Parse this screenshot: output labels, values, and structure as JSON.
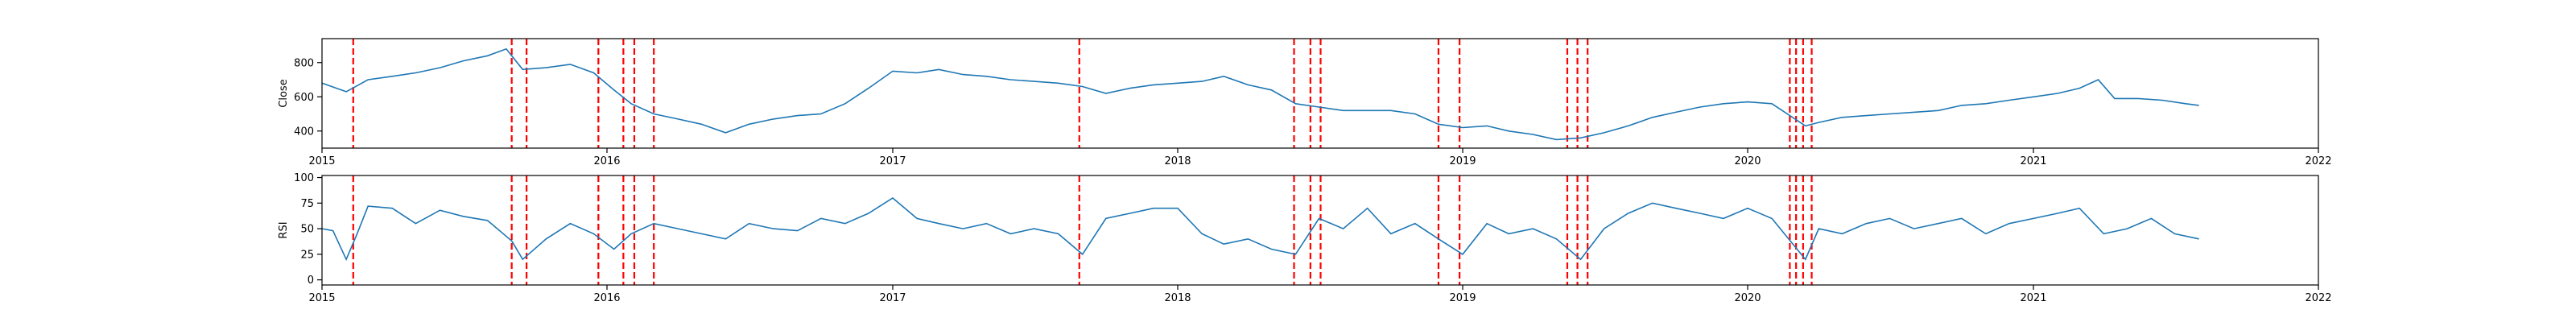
{
  "chart_data": [
    {
      "type": "line",
      "ylabel": "Close",
      "xlim": [
        "2015-01-01",
        "2022-01-01"
      ],
      "ylim": [
        300,
        940
      ],
      "yticks": [
        400,
        600,
        800
      ],
      "xticks": [
        "2015",
        "2016",
        "2017",
        "2018",
        "2019",
        "2020",
        "2021",
        "2022"
      ],
      "grid": false,
      "line_color": "#1f77b4",
      "series": [
        {
          "x": [
            "2015-01-01",
            "2015-02-01",
            "2015-03-01",
            "2015-04-01",
            "2015-05-01",
            "2015-06-01",
            "2015-07-01",
            "2015-08-01",
            "2015-08-25",
            "2015-09-15",
            "2015-10-15",
            "2015-11-15",
            "2015-12-15",
            "2016-01-10",
            "2016-02-01",
            "2016-03-01",
            "2016-04-01",
            "2016-05-01",
            "2016-06-01",
            "2016-07-01",
            "2016-08-01",
            "2016-09-01",
            "2016-10-01",
            "2016-11-01",
            "2016-12-01",
            "2017-01-01",
            "2017-02-01",
            "2017-03-01",
            "2017-04-01",
            "2017-05-01",
            "2017-06-01",
            "2017-07-01",
            "2017-08-01",
            "2017-09-01",
            "2017-10-01",
            "2017-11-01",
            "2017-12-01",
            "2018-01-01",
            "2018-02-01",
            "2018-03-01",
            "2018-04-01",
            "2018-05-01",
            "2018-06-01",
            "2018-07-01",
            "2018-08-01",
            "2018-09-01",
            "2018-10-01",
            "2018-11-01",
            "2018-12-01",
            "2019-01-01",
            "2019-02-01",
            "2019-03-01",
            "2019-04-01",
            "2019-05-01",
            "2019-06-01",
            "2019-07-01",
            "2019-08-01",
            "2019-09-01",
            "2019-10-01",
            "2019-11-01",
            "2019-12-01",
            "2020-01-01",
            "2020-02-01",
            "2020-03-15",
            "2020-04-01",
            "2020-05-01",
            "2020-06-01",
            "2020-07-01",
            "2020-08-01",
            "2020-09-01",
            "2020-10-01",
            "2020-11-01",
            "2020-12-01",
            "2021-01-01",
            "2021-02-01",
            "2021-03-01",
            "2021-03-25",
            "2021-04-15",
            "2021-05-15",
            "2021-06-15",
            "2021-07-15",
            "2021-08-01"
          ],
          "values": [
            680,
            630,
            700,
            720,
            740,
            770,
            810,
            840,
            880,
            760,
            770,
            790,
            740,
            640,
            560,
            500,
            470,
            440,
            390,
            440,
            470,
            490,
            500,
            560,
            650,
            750,
            740,
            760,
            730,
            720,
            700,
            690,
            680,
            660,
            620,
            650,
            670,
            680,
            690,
            720,
            670,
            640,
            560,
            540,
            520,
            520,
            520,
            500,
            440,
            420,
            430,
            400,
            380,
            350,
            360,
            390,
            430,
            480,
            510,
            540,
            560,
            570,
            560,
            430,
            450,
            480,
            490,
            500,
            510,
            520,
            550,
            560,
            580,
            600,
            620,
            650,
            700,
            590,
            590,
            580,
            560,
            550
          ]
        }
      ]
    },
    {
      "type": "line",
      "ylabel": "RSI",
      "xlim": [
        "2015-01-01",
        "2022-01-01"
      ],
      "ylim": [
        -5,
        102
      ],
      "yticks": [
        0,
        25,
        50,
        75,
        100
      ],
      "xticks": [
        "2015",
        "2016",
        "2017",
        "2018",
        "2019",
        "2020",
        "2021",
        "2022"
      ],
      "grid": false,
      "line_color": "#1f77b4",
      "series": [
        {
          "x": [
            "2015-01-01",
            "2015-01-15",
            "2015-02-01",
            "2015-02-15",
            "2015-03-01",
            "2015-04-01",
            "2015-05-01",
            "2015-06-01",
            "2015-07-01",
            "2015-08-01",
            "2015-09-01",
            "2015-09-15",
            "2015-10-15",
            "2015-11-15",
            "2015-12-15",
            "2016-01-10",
            "2016-02-01",
            "2016-03-01",
            "2016-04-01",
            "2016-05-01",
            "2016-06-01",
            "2016-07-01",
            "2016-08-01",
            "2016-09-01",
            "2016-10-01",
            "2016-11-01",
            "2016-12-01",
            "2017-01-01",
            "2017-02-01",
            "2017-03-01",
            "2017-04-01",
            "2017-05-01",
            "2017-06-01",
            "2017-07-01",
            "2017-08-01",
            "2017-09-01",
            "2017-10-01",
            "2017-11-01",
            "2017-12-01",
            "2018-01-01",
            "2018-02-01",
            "2018-03-01",
            "2018-04-01",
            "2018-05-01",
            "2018-06-01",
            "2018-07-01",
            "2018-08-01",
            "2018-09-01",
            "2018-10-01",
            "2018-11-01",
            "2018-12-01",
            "2019-01-01",
            "2019-02-01",
            "2019-03-01",
            "2019-04-01",
            "2019-05-01",
            "2019-06-01",
            "2019-07-01",
            "2019-08-01",
            "2019-09-01",
            "2019-10-01",
            "2019-11-01",
            "2019-12-01",
            "2020-01-01",
            "2020-02-01",
            "2020-03-15",
            "2020-04-01",
            "2020-05-01",
            "2020-06-01",
            "2020-07-01",
            "2020-08-01",
            "2020-09-01",
            "2020-10-01",
            "2020-11-01",
            "2020-12-01",
            "2021-01-01",
            "2021-02-01",
            "2021-03-01",
            "2021-04-01",
            "2021-05-01",
            "2021-06-01",
            "2021-07-01",
            "2021-08-01"
          ],
          "values": [
            50,
            48,
            20,
            45,
            72,
            70,
            55,
            68,
            62,
            58,
            38,
            20,
            40,
            55,
            45,
            30,
            45,
            55,
            50,
            45,
            40,
            55,
            50,
            48,
            60,
            55,
            65,
            80,
            60,
            55,
            50,
            55,
            45,
            50,
            45,
            25,
            60,
            65,
            70,
            70,
            45,
            35,
            40,
            30,
            25,
            60,
            50,
            70,
            45,
            55,
            40,
            25,
            55,
            45,
            50,
            40,
            20,
            50,
            65,
            75,
            70,
            65,
            60,
            70,
            60,
            20,
            50,
            45,
            55,
            60,
            50,
            55,
            60,
            45,
            55,
            60,
            65,
            70,
            45,
            50,
            60,
            45,
            40
          ]
        }
      ]
    }
  ],
  "events": [
    "2015-02-10",
    "2015-09-01",
    "2015-09-20",
    "2015-12-21",
    "2016-01-22",
    "2016-02-05",
    "2016-03-01",
    "2017-08-28",
    "2018-05-30",
    "2018-06-20",
    "2018-07-03",
    "2018-12-01",
    "2018-12-28",
    "2019-05-15",
    "2019-05-28",
    "2019-06-10",
    "2020-02-24",
    "2020-03-03",
    "2020-03-12",
    "2020-03-23"
  ],
  "event_color": "#ff0000"
}
